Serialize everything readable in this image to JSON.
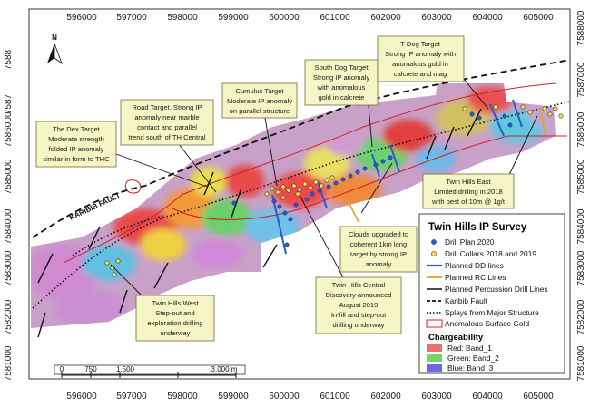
{
  "map": {
    "x_ticks": [
      "596000",
      "597000",
      "598000",
      "599000",
      "600000",
      "601000",
      "602000",
      "603000",
      "604000",
      "605000"
    ],
    "y_ticks": [
      "7588000",
      "7587000",
      "7586000",
      "7585000",
      "7584000",
      "7583000",
      "7582000",
      "7581000"
    ],
    "y_ticks_partial": [
      "7588",
      "7587"
    ],
    "north_label": "N",
    "fault_label": "KARIBIB FAULT"
  },
  "callouts": {
    "dex": [
      "The Dex Target",
      "Moderate strength",
      "folded IP anomaly",
      "similar in form to THC"
    ],
    "road": [
      "Road Target. Strong IP",
      "anomaly near marble",
      "contact and parallel",
      "trend south of TH Central"
    ],
    "cumulus": [
      "Cumulus Target",
      "Moderate IP anomaly",
      "on parallel structure"
    ],
    "southdog": [
      "South Dog Target",
      "Strong IP anomaly",
      "with anomalous",
      "gold in calcrete"
    ],
    "tdog": [
      "T-Dog Target",
      "Strong IP anomaly with",
      "anomalous gold in",
      "calcrete and mag"
    ],
    "east": [
      "Twin Hills East",
      "Limited drilling in 2018",
      "with best of 10m @ 1g/t"
    ],
    "clouds": [
      "Clouds upgraded to",
      "coherent 1km long",
      "target by strong IP",
      "anomaly"
    ],
    "central": [
      "Twin Hills Central",
      "Discovery announced",
      "August 2019",
      "In-fill and step-out",
      "drilling underway"
    ],
    "west": [
      "Twin Hills West",
      "Step-out and",
      "exploration drilling",
      "underway"
    ]
  },
  "legend": {
    "title": "Twin Hills IP Survey",
    "items": [
      {
        "label": "Drill Plan 2020",
        "symbol": "blue-dot"
      },
      {
        "label": "Drill Collars 2018 and 2019",
        "symbol": "yellow-dot"
      },
      {
        "label": "Planned DD lines",
        "symbol": "blue-line"
      },
      {
        "label": "Planned RC Lines",
        "symbol": "orange-line"
      },
      {
        "label": "Planned Percussion Drill Lines",
        "symbol": "black-line"
      },
      {
        "label": "Karibib Fault",
        "symbol": "dashed-line"
      },
      {
        "label": "Splays from Major Structure",
        "symbol": "dotted-line"
      },
      {
        "label": "Anomalous Surface Gold",
        "symbol": "red-outline"
      }
    ],
    "chargeability_title": "Chargeability",
    "bands": [
      {
        "label": "Red:   Band_1",
        "color": "#ee6f6f"
      },
      {
        "label": "Green:  Band_2",
        "color": "#78d26e"
      },
      {
        "label": "Blue:   Band_3",
        "color": "#6a6ae6"
      }
    ]
  },
  "scale_bar": {
    "labels": [
      "0",
      "750",
      "1,500",
      "3,000 m"
    ]
  },
  "colors": {
    "callout_fill": "#f5f5c6",
    "callout_border": "#6f6f3a",
    "dd_line": "#2f58c8",
    "rc_line": "#e6a21a",
    "gold_outline": "#d0202a"
  }
}
